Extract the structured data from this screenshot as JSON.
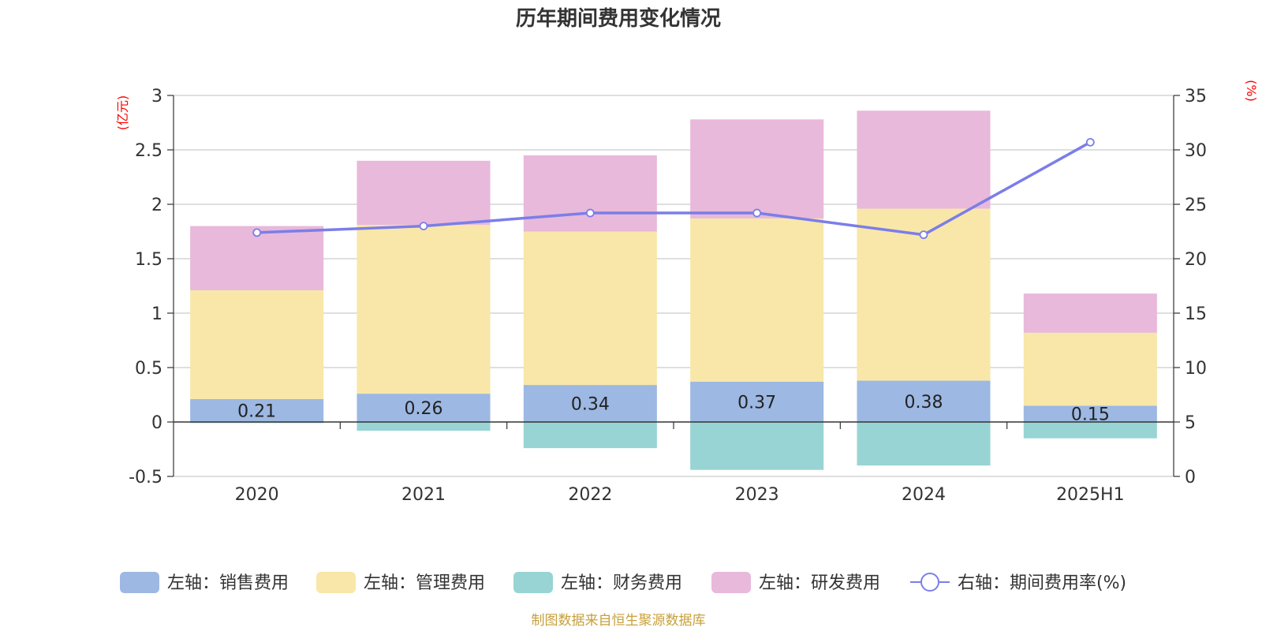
{
  "chart_data": {
    "type": "bar",
    "title": "历年期间费用变化情况",
    "left_axis_unit": "(亿元)",
    "right_axis_unit": "(%)",
    "categories": [
      "2020",
      "2021",
      "2022",
      "2023",
      "2024",
      "2025H1"
    ],
    "y_left": {
      "min": -0.5,
      "max": 3,
      "ticks": [
        "-0.5",
        "0",
        "0.5",
        "1",
        "1.5",
        "2",
        "2.5",
        "3"
      ]
    },
    "y_right": {
      "min": 0,
      "max": 35,
      "ticks": [
        "0",
        "5",
        "10",
        "15",
        "20",
        "25",
        "30",
        "35"
      ]
    },
    "series": [
      {
        "name": "左轴：销售费用",
        "type": "bar",
        "axis": "left",
        "color": "#9db8e2",
        "values": [
          0.21,
          0.26,
          0.34,
          0.37,
          0.38,
          0.15
        ],
        "labels": [
          "0.21",
          "0.26",
          "0.34",
          "0.37",
          "0.38",
          "0.15"
        ]
      },
      {
        "name": "左轴：管理费用",
        "type": "bar",
        "axis": "left",
        "color": "#f8e7a8",
        "values": [
          1.0,
          1.55,
          1.41,
          1.5,
          1.58,
          0.67
        ]
      },
      {
        "name": "左轴：财务费用",
        "type": "bar",
        "axis": "left",
        "color": "#98d4d4",
        "values": [
          -0.01,
          -0.08,
          -0.24,
          -0.44,
          -0.4,
          -0.15
        ]
      },
      {
        "name": "左轴：研发费用",
        "type": "bar",
        "axis": "left",
        "color": "#e8b9da",
        "values": [
          0.59,
          0.59,
          0.7,
          0.91,
          0.9,
          0.36
        ]
      },
      {
        "name": "右轴：期间费用率(%)",
        "type": "line",
        "axis": "right",
        "color": "#7b7ee8",
        "values": [
          22.4,
          23.0,
          24.2,
          24.2,
          22.2,
          30.7
        ]
      }
    ],
    "grid": true,
    "legend_position": "bottom"
  },
  "footer": {
    "source": "制图数据来自恒生聚源数据库"
  }
}
